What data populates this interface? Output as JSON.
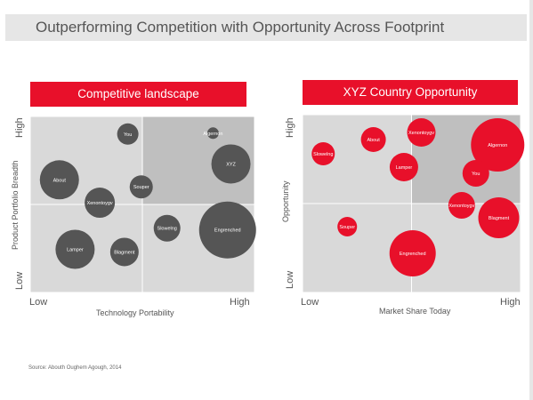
{
  "page": {
    "title": "Outperforming Competition with Opportunity Across Footprint",
    "source": "Source:  Abouth Oughem Agough, 2014"
  },
  "colors": {
    "accent": "#e8102a",
    "bubble_dark": "#555555",
    "quadrant_light": "#d9d9d9",
    "quadrant_dark": "#bfbfbf"
  },
  "chart_data": [
    {
      "type": "scatter",
      "title": "Competitive landscape",
      "xlabel": "Technology Portability",
      "ylabel": "Product Portfolio Breadth",
      "x_tick_labels": [
        "Low",
        "High"
      ],
      "y_tick_labels": [
        "Low",
        "High"
      ],
      "xlim": [
        0,
        10
      ],
      "ylim": [
        0,
        10
      ],
      "highlight_quadrant": "top-right",
      "bubble_color": "#555555",
      "points": [
        {
          "label": "You",
          "x": 4.35,
          "y": 9.0,
          "size": 1.2
        },
        {
          "label": "Algernon",
          "x": 8.15,
          "y": 9.05,
          "size": 0.65
        },
        {
          "label": "XYZ",
          "x": 8.95,
          "y": 7.3,
          "size": 2.2
        },
        {
          "label": "About",
          "x": 1.3,
          "y": 6.4,
          "size": 2.2
        },
        {
          "label": "Souper",
          "x": 4.95,
          "y": 6.0,
          "size": 1.3
        },
        {
          "label": "Xenontoygv",
          "x": 3.1,
          "y": 5.1,
          "size": 1.7
        },
        {
          "label": "Slowelng",
          "x": 6.1,
          "y": 3.65,
          "size": 1.5
        },
        {
          "label": "Engrenched",
          "x": 8.8,
          "y": 3.55,
          "size": 3.2
        },
        {
          "label": "Lamper",
          "x": 2.0,
          "y": 2.45,
          "size": 2.2
        },
        {
          "label": "Blagment",
          "x": 4.2,
          "y": 2.3,
          "size": 1.6
        }
      ]
    },
    {
      "type": "scatter",
      "title": "XYZ Country Opportunity",
      "xlabel": "Market Share Today",
      "ylabel": "Opportunity",
      "x_tick_labels": [
        "Low",
        "High"
      ],
      "y_tick_labels": [
        "Low",
        "High"
      ],
      "xlim": [
        0,
        10
      ],
      "ylim": [
        0,
        10
      ],
      "highlight_quadrant": "top-right",
      "bubble_color": "#e8102a",
      "points": [
        {
          "label": "Xenontoygv",
          "x": 5.45,
          "y": 9.0,
          "size": 1.6
        },
        {
          "label": "Algernon",
          "x": 8.95,
          "y": 8.3,
          "size": 3.0
        },
        {
          "label": "About",
          "x": 3.25,
          "y": 8.6,
          "size": 1.4
        },
        {
          "label": "Slowelng",
          "x": 0.95,
          "y": 7.8,
          "size": 1.3
        },
        {
          "label": "Lamper",
          "x": 4.65,
          "y": 7.05,
          "size": 1.6
        },
        {
          "label": "You",
          "x": 7.95,
          "y": 6.7,
          "size": 1.5
        },
        {
          "label": "Xenontoygv",
          "x": 7.3,
          "y": 4.9,
          "size": 1.5
        },
        {
          "label": "Blagment",
          "x": 9.0,
          "y": 4.2,
          "size": 2.3
        },
        {
          "label": "Souper",
          "x": 2.05,
          "y": 3.7,
          "size": 1.1
        },
        {
          "label": "Engrenched",
          "x": 5.05,
          "y": 2.2,
          "size": 2.6
        }
      ]
    }
  ]
}
